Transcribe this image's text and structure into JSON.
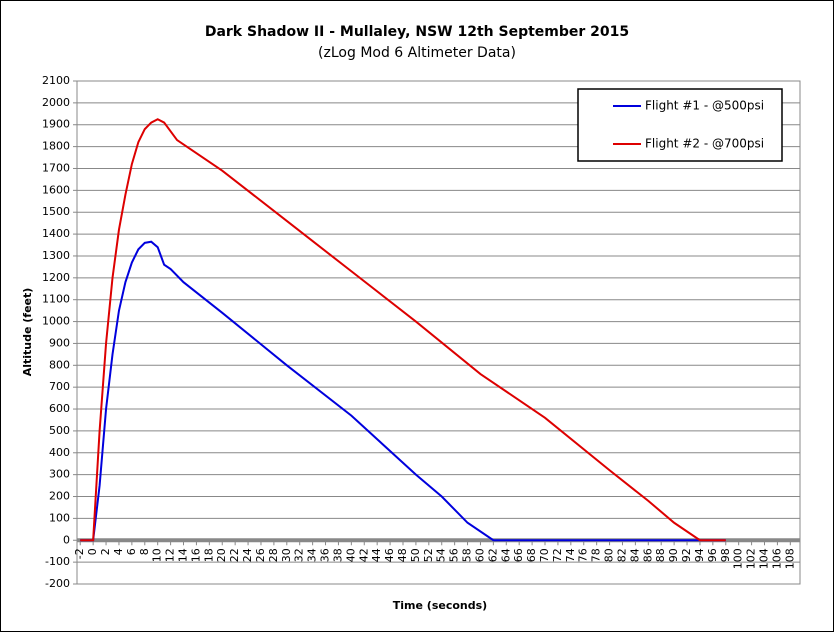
{
  "chart_data": {
    "type": "line",
    "title": "Dark Shadow II - Mullaley, NSW 12th September 2015",
    "subtitle": "(zLog Mod 6 Altimeter Data)",
    "x_label": "Time (seconds)",
    "y_label": "Altitude (feet)",
    "xlim": [
      -2.5,
      109.5
    ],
    "ylim": [
      -200,
      2100
    ],
    "xticks": [
      -2,
      0,
      2,
      4,
      6,
      8,
      10,
      12,
      14,
      16,
      18,
      20,
      22,
      24,
      26,
      28,
      30,
      32,
      34,
      36,
      38,
      40,
      42,
      44,
      46,
      48,
      50,
      52,
      54,
      56,
      58,
      60,
      62,
      64,
      66,
      68,
      70,
      72,
      74,
      76,
      78,
      80,
      82,
      84,
      86,
      88,
      90,
      92,
      94,
      96,
      98,
      100,
      102,
      104,
      106,
      108
    ],
    "yticks": [
      -200,
      -100,
      0,
      100,
      200,
      300,
      400,
      500,
      600,
      700,
      800,
      900,
      1000,
      1100,
      1200,
      1300,
      1400,
      1500,
      1600,
      1700,
      1800,
      1900,
      2000,
      2100
    ],
    "grid": true,
    "legend": "upper right",
    "series": [
      {
        "name": "Flight #1 - @500psi",
        "color": "#0000dd",
        "x": [
          -2,
          0,
          1,
          2,
          3,
          4,
          5,
          6,
          7,
          8,
          9,
          10,
          11,
          12,
          14,
          20,
          30,
          40,
          50,
          54,
          58,
          62,
          98
        ],
        "values": [
          0,
          0,
          250,
          600,
          850,
          1050,
          1180,
          1270,
          1330,
          1360,
          1365,
          1340,
          1260,
          1240,
          1180,
          1040,
          800,
          570,
          300,
          200,
          80,
          0,
          0
        ]
      },
      {
        "name": "Flight #2 - @700psi",
        "color": "#dd0000",
        "x": [
          -2,
          0,
          1,
          2,
          3,
          4,
          5,
          6,
          7,
          8,
          9,
          10,
          11,
          12,
          13,
          14,
          20,
          30,
          40,
          50,
          60,
          70,
          80,
          86,
          90,
          94,
          98
        ],
        "values": [
          0,
          0,
          500,
          900,
          1200,
          1420,
          1580,
          1720,
          1820,
          1880,
          1910,
          1925,
          1910,
          1870,
          1830,
          1810,
          1690,
          1460,
          1230,
          1000,
          760,
          560,
          320,
          180,
          80,
          0,
          0
        ]
      }
    ]
  }
}
